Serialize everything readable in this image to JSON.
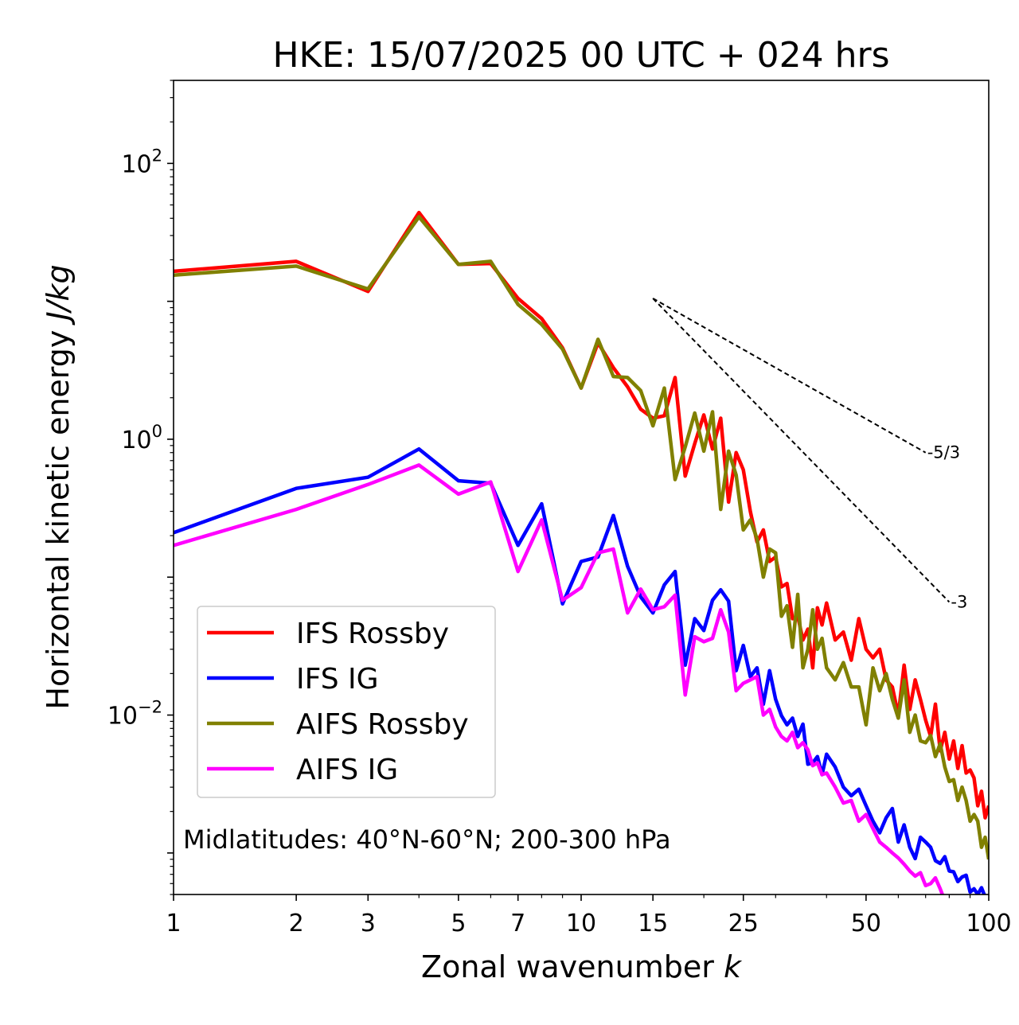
{
  "chart_data": {
    "type": "line",
    "title": "HKE: 15/07/2025 00 UTC + 024 hrs",
    "xlabel": "Zonal wavenumber ",
    "xlabel_italic": "k",
    "ylabel": "Horizontal kinetic energy ",
    "ylabel_italic": "J/kg",
    "xscale": "log",
    "yscale": "log",
    "xlim": [
      1,
      100
    ],
    "ylim": [
      0.0005,
      400
    ],
    "xticks": [
      {
        "value": 1,
        "label": "1"
      },
      {
        "value": 2,
        "label": "2"
      },
      {
        "value": 3,
        "label": "3"
      },
      {
        "value": 5,
        "label": "5"
      },
      {
        "value": 7,
        "label": "7"
      },
      {
        "value": 10,
        "label": "10"
      },
      {
        "value": 15,
        "label": "15"
      },
      {
        "value": 25,
        "label": "25"
      },
      {
        "value": 50,
        "label": "50"
      },
      {
        "value": 100,
        "label": "100"
      }
    ],
    "yticks": [
      {
        "value": 100,
        "base": "10",
        "exp": "2"
      },
      {
        "value": 1,
        "base": "10",
        "exp": "0"
      },
      {
        "value": 0.01,
        "base": "10",
        "exp": "−2"
      }
    ],
    "legend_position": "lower-left",
    "annotation": "Midlatitudes: 40°N-60°N; 200-300 hPa",
    "reference_slopes": [
      {
        "label": "-5/3",
        "x0": 15,
        "y0": 10.5,
        "x1": 70,
        "y1": 0.8
      },
      {
        "label": "-3",
        "x0": 15,
        "y0": 10.5,
        "x1": 80,
        "y1": 0.066
      }
    ],
    "series": [
      {
        "name": "IFS Rossby",
        "color": "#ff0000",
        "x": [
          1,
          2,
          3,
          4,
          5,
          6,
          7,
          8,
          9,
          10,
          11,
          12,
          13,
          14,
          15,
          16,
          17,
          18,
          19,
          20,
          21,
          22,
          23,
          24,
          25,
          26,
          27,
          28,
          29,
          30,
          31,
          32,
          33,
          34,
          35,
          36,
          37,
          38,
          39,
          40,
          42,
          44,
          46,
          48,
          50,
          52,
          54,
          56,
          58,
          60,
          62,
          64,
          66,
          68,
          70,
          72,
          74,
          76,
          78,
          80,
          82,
          84,
          86,
          88,
          90,
          92,
          94,
          96,
          98,
          100
        ],
        "y": [
          16.5,
          19.5,
          11.8,
          44.0,
          18.5,
          18.8,
          10.5,
          7.5,
          4.6,
          2.35,
          5.0,
          3.3,
          2.4,
          1.65,
          1.42,
          1.48,
          2.8,
          0.54,
          0.93,
          1.5,
          0.85,
          1.42,
          0.35,
          0.8,
          0.6,
          0.3,
          0.18,
          0.22,
          0.13,
          0.14,
          0.085,
          0.09,
          0.05,
          0.052,
          0.035,
          0.042,
          0.022,
          0.06,
          0.045,
          0.065,
          0.035,
          0.04,
          0.025,
          0.05,
          0.03,
          0.026,
          0.03,
          0.018,
          0.016,
          0.01,
          0.023,
          0.011,
          0.018,
          0.013,
          0.0092,
          0.007,
          0.012,
          0.0055,
          0.0075,
          0.0048,
          0.0065,
          0.0041,
          0.006,
          0.0038,
          0.004,
          0.0035,
          0.0022,
          0.0028,
          0.0018,
          0.0022
        ]
      },
      {
        "name": "IFS IG",
        "color": "#0000ff",
        "x": [
          1,
          2,
          3,
          4,
          5,
          6,
          7,
          8,
          9,
          10,
          11,
          12,
          13,
          14,
          15,
          16,
          17,
          18,
          19,
          20,
          21,
          22,
          23,
          24,
          25,
          26,
          27,
          28,
          29,
          30,
          31,
          32,
          33,
          34,
          35,
          36,
          37,
          38,
          39,
          40,
          42,
          44,
          46,
          48,
          50,
          52,
          54,
          56,
          58,
          60,
          62,
          64,
          66,
          68,
          70,
          72,
          74,
          76,
          78,
          80,
          82,
          84,
          86,
          88,
          90,
          92,
          94,
          96,
          98,
          100
        ],
        "y": [
          0.21,
          0.44,
          0.53,
          0.85,
          0.5,
          0.48,
          0.17,
          0.34,
          0.064,
          0.13,
          0.14,
          0.28,
          0.12,
          0.072,
          0.055,
          0.088,
          0.11,
          0.023,
          0.05,
          0.041,
          0.068,
          0.081,
          0.067,
          0.021,
          0.032,
          0.019,
          0.022,
          0.012,
          0.021,
          0.013,
          0.0099,
          0.0085,
          0.0095,
          0.007,
          0.0086,
          0.0044,
          0.0045,
          0.005,
          0.0037,
          0.0052,
          0.0042,
          0.003,
          0.0026,
          0.0029,
          0.0022,
          0.0017,
          0.0014,
          0.0018,
          0.0021,
          0.0012,
          0.0016,
          0.0011,
          0.00091,
          0.0013,
          0.0012,
          0.0011,
          0.00088,
          0.00084,
          0.00094,
          0.00074,
          0.00073,
          0.00062,
          0.00067,
          0.00069,
          0.00052,
          0.00055,
          0.0005,
          0.00056,
          0.00048,
          0.00045
        ]
      },
      {
        "name": "AIFS Rossby",
        "color": "#808000",
        "x": [
          1,
          2,
          3,
          4,
          5,
          6,
          7,
          8,
          9,
          10,
          11,
          12,
          13,
          14,
          15,
          16,
          17,
          18,
          19,
          20,
          21,
          22,
          23,
          24,
          25,
          26,
          27,
          28,
          29,
          30,
          31,
          32,
          33,
          34,
          35,
          36,
          37,
          38,
          39,
          40,
          42,
          44,
          46,
          48,
          50,
          52,
          54,
          56,
          58,
          60,
          62,
          64,
          66,
          68,
          70,
          72,
          74,
          76,
          78,
          80,
          82,
          84,
          86,
          88,
          90,
          92,
          94,
          96,
          98,
          100
        ],
        "y": [
          15.5,
          18.0,
          12.3,
          41.0,
          18.5,
          19.5,
          9.5,
          6.8,
          4.5,
          2.35,
          5.3,
          2.85,
          2.8,
          2.25,
          1.25,
          2.35,
          0.51,
          0.88,
          1.55,
          0.82,
          1.58,
          0.31,
          0.82,
          0.55,
          0.22,
          0.26,
          0.19,
          0.1,
          0.16,
          0.15,
          0.052,
          0.062,
          0.031,
          0.075,
          0.022,
          0.03,
          0.058,
          0.03,
          0.036,
          0.022,
          0.018,
          0.024,
          0.016,
          0.016,
          0.0085,
          0.022,
          0.015,
          0.02,
          0.013,
          0.0095,
          0.018,
          0.0075,
          0.01,
          0.0065,
          0.0063,
          0.0071,
          0.005,
          0.0062,
          0.0042,
          0.0033,
          0.0034,
          0.0024,
          0.003,
          0.0024,
          0.0017,
          0.0019,
          0.0017,
          0.0011,
          0.0013,
          0.0009
        ]
      },
      {
        "name": "AIFS IG",
        "color": "#ff00ff",
        "x": [
          1,
          2,
          3,
          4,
          5,
          6,
          7,
          8,
          9,
          10,
          11,
          12,
          13,
          14,
          15,
          16,
          17,
          18,
          19,
          20,
          21,
          22,
          23,
          24,
          25,
          26,
          27,
          28,
          29,
          30,
          31,
          32,
          33,
          34,
          35,
          36,
          37,
          38,
          39,
          40,
          42,
          44,
          46,
          48,
          50,
          52,
          54,
          56,
          58,
          60,
          62,
          64,
          66,
          68,
          70,
          72,
          74,
          76,
          78,
          80,
          82
        ],
        "y": [
          0.17,
          0.31,
          0.47,
          0.65,
          0.4,
          0.49,
          0.11,
          0.26,
          0.068,
          0.084,
          0.15,
          0.16,
          0.055,
          0.082,
          0.058,
          0.061,
          0.074,
          0.014,
          0.037,
          0.034,
          0.036,
          0.058,
          0.04,
          0.015,
          0.017,
          0.018,
          0.019,
          0.01,
          0.011,
          0.0082,
          0.007,
          0.0065,
          0.0075,
          0.0058,
          0.0063,
          0.0056,
          0.0043,
          0.0045,
          0.0037,
          0.0038,
          0.003,
          0.0023,
          0.0024,
          0.0017,
          0.0019,
          0.0015,
          0.0012,
          0.0011,
          0.001,
          0.00092,
          0.00083,
          0.00074,
          0.00068,
          0.00072,
          0.00058,
          0.0006,
          0.00066,
          0.00055,
          0.00045,
          0.0004,
          0.0005
        ]
      }
    ]
  }
}
